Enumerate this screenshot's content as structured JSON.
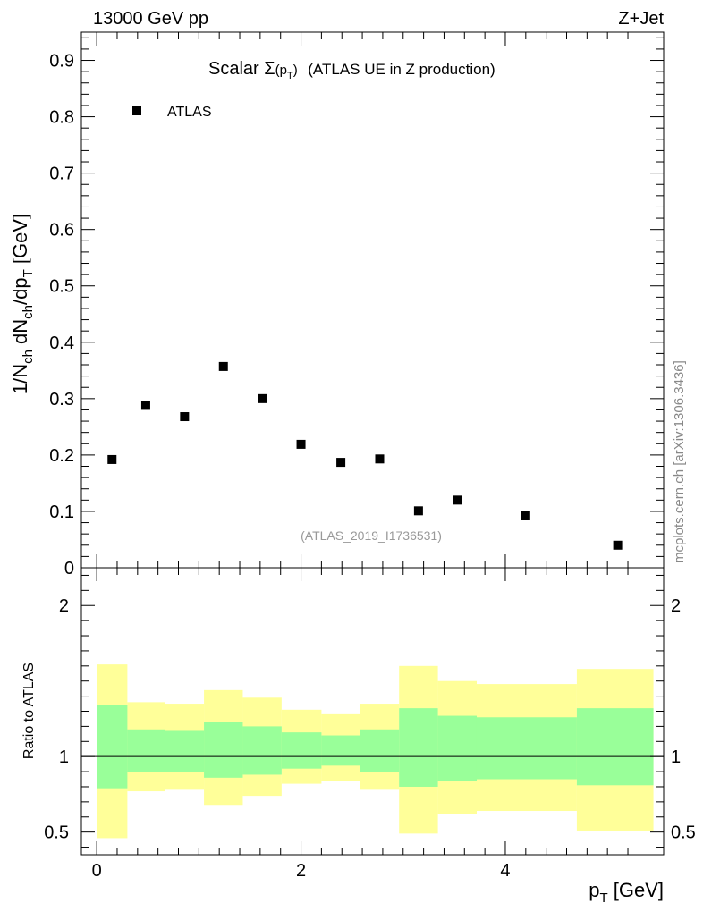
{
  "header": {
    "left_label": "13000 GeV pp",
    "right_label": "Z+Jet"
  },
  "side_text": "mcplots.cern.ch [arXiv:1306.3436]",
  "chart_data": [
    {
      "type": "scatter",
      "panel": "main",
      "title_prefix": "Scalar ",
      "title_sigma": "Σ",
      "title_arg_open": "(p",
      "title_arg_sub": "T",
      "title_arg_close": ")",
      "title_suffix": "(ATLAS UE in Z production)",
      "ylabel": {
        "p1": "1/N",
        "s1": "ch",
        "p2": " dN",
        "s2": "ch",
        "p3": "/dp",
        "s3": "T",
        "unit": " [GeV]"
      },
      "xlim": [
        -0.15,
        5.55
      ],
      "ylim": [
        0,
        0.95
      ],
      "yticks": [
        0,
        0.1,
        0.2,
        0.3,
        0.4,
        0.5,
        0.6,
        0.7,
        0.8,
        0.9
      ],
      "ytick_labels": [
        "0",
        "0.1",
        "0.2",
        "0.3",
        "0.4",
        "0.5",
        "0.6",
        "0.7",
        "0.8",
        "0.9"
      ],
      "legend": {
        "marker": "square",
        "label": "ATLAS",
        "placement": "top-left"
      },
      "watermark": "(ATLAS_2019_I1736531)",
      "series": [
        {
          "name": "ATLAS",
          "x": [
            0.15,
            0.48,
            0.86,
            1.24,
            1.62,
            2.0,
            2.39,
            2.77,
            3.15,
            3.53,
            4.2,
            5.1
          ],
          "y": [
            0.192,
            0.288,
            0.268,
            0.357,
            0.3,
            0.219,
            0.187,
            0.193,
            0.101,
            0.12,
            0.092,
            0.04
          ]
        }
      ]
    },
    {
      "type": "area",
      "panel": "ratio",
      "ylabel": "Ratio to ATLAS",
      "xlabel_main": "p",
      "xlabel_sub": "T",
      "xlabel_unit": " [GeV]",
      "xlim": [
        -0.15,
        5.55
      ],
      "ylim": [
        0.35,
        2.25
      ],
      "yticks": [
        0.5,
        1,
        2
      ],
      "ytick_labels": [
        "0.5",
        "1",
        "2"
      ],
      "xticks": [
        0,
        2,
        4
      ],
      "xtick_labels": [
        "0",
        "2",
        "4"
      ],
      "reference_line": 1,
      "bins": [
        0.0,
        0.3,
        0.67,
        1.05,
        1.43,
        1.81,
        2.2,
        2.58,
        2.96,
        3.34,
        3.72,
        4.7,
        5.45
      ],
      "band_inner_lo": [
        0.79,
        0.9,
        0.9,
        0.86,
        0.88,
        0.92,
        0.94,
        0.9,
        0.8,
        0.84,
        0.85,
        0.81
      ],
      "band_inner_hi": [
        1.34,
        1.18,
        1.17,
        1.23,
        1.2,
        1.16,
        1.14,
        1.18,
        1.32,
        1.27,
        1.26,
        1.32
      ],
      "band_outer_lo": [
        0.46,
        0.77,
        0.78,
        0.68,
        0.74,
        0.82,
        0.84,
        0.78,
        0.49,
        0.62,
        0.64,
        0.51
      ],
      "band_outer_hi": [
        1.61,
        1.36,
        1.35,
        1.44,
        1.39,
        1.31,
        1.28,
        1.35,
        1.6,
        1.5,
        1.48,
        1.58
      ],
      "colors": {
        "inner": "#99ff99",
        "outer": "#ffff99",
        "line": "#000000"
      }
    }
  ]
}
